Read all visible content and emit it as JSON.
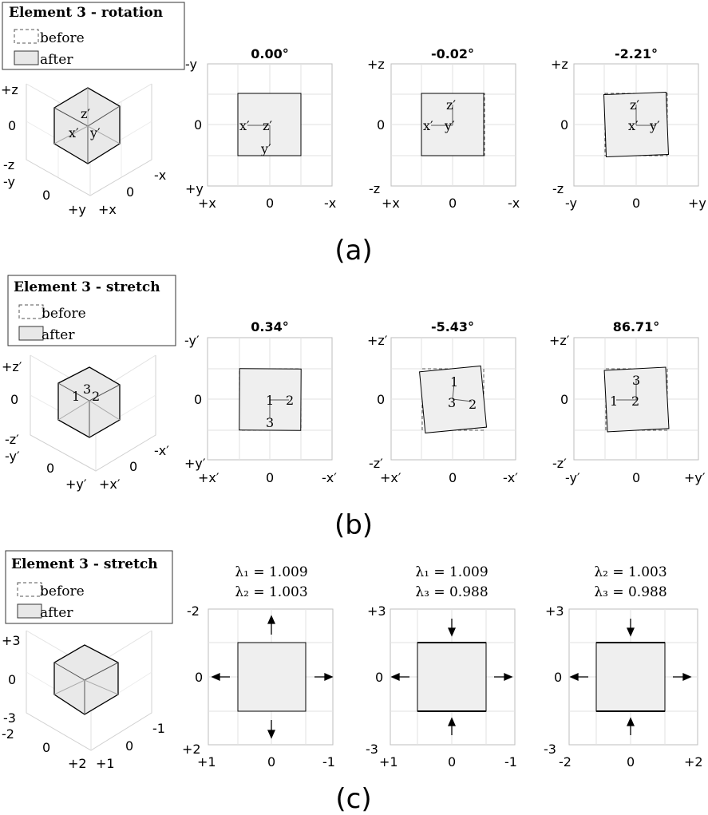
{
  "colors": {
    "after_fill": "#efefef",
    "grid": "#e1e1e1",
    "edge": "#000000"
  },
  "legend_labels": {
    "before": "before",
    "after": "after"
  },
  "rows": [
    {
      "caption": "(a)",
      "legend_title": "Element 3 - rotation",
      "cube": {
        "z_ticks": [
          "+z",
          "0",
          "-z"
        ],
        "left_ticks": [
          "-y",
          "0",
          "+y"
        ],
        "right_ticks": [
          "-x",
          "0",
          "+x"
        ],
        "labels": [
          "z′",
          "x′",
          "y′"
        ]
      },
      "panels": [
        {
          "title": "0.00°",
          "yticks": [
            "-y",
            "0",
            "+y"
          ],
          "xticks": [
            "+x",
            "0",
            "-x"
          ],
          "angle": 0.0,
          "labels": [
            "x′",
            "z′",
            "y′"
          ]
        },
        {
          "title": "-0.02°",
          "yticks": [
            "+z",
            "0",
            "-z"
          ],
          "xticks": [
            "+x",
            "0",
            "-x"
          ],
          "angle": -0.02,
          "labels": [
            "z′",
            "x′",
            "y′"
          ]
        },
        {
          "title": "-2.21°",
          "yticks": [
            "+z",
            "0",
            "-z"
          ],
          "xticks": [
            "-y",
            "0",
            "+y"
          ],
          "angle": -2.21,
          "labels": [
            "z′",
            "x′",
            "y′"
          ]
        }
      ]
    },
    {
      "caption": "(b)",
      "legend_title": "Element 3 - stretch",
      "cube": {
        "z_ticks": [
          "+z′",
          "0",
          "-z′"
        ],
        "left_ticks": [
          "-y′",
          "0",
          "+y′"
        ],
        "right_ticks": [
          "-x′",
          "0",
          "+x′"
        ],
        "labels": [
          "3",
          "1",
          "2"
        ]
      },
      "panels": [
        {
          "title": "0.34°",
          "yticks": [
            "-y′",
            "0",
            "+y′"
          ],
          "xticks": [
            "+x′",
            "0",
            "-x′"
          ],
          "angle": 0.34,
          "labels": [
            "1",
            "2",
            "3"
          ]
        },
        {
          "title": "-5.43°",
          "yticks": [
            "+z′",
            "0",
            "-z′"
          ],
          "xticks": [
            "+x′",
            "0",
            "-x′"
          ],
          "angle": -5.43,
          "labels": [
            "1",
            "3",
            "2"
          ]
        },
        {
          "title": "86.71°",
          "yticks": [
            "+z′",
            "0",
            "-z′"
          ],
          "xticks": [
            "-y′",
            "0",
            "+y′"
          ],
          "angle": 86.71,
          "labels": [
            "3",
            "1",
            "2"
          ]
        }
      ]
    },
    {
      "caption": "(c)",
      "legend_title": "Element 3 - stretch",
      "cube": {
        "z_ticks": [
          "+3",
          "0",
          "-3"
        ],
        "left_ticks": [
          "-2",
          "0",
          "+2"
        ],
        "right_ticks": [
          "-1",
          "0",
          "+1"
        ]
      },
      "panels": [
        {
          "title": [
            "λ₁ = 1.009",
            "λ₂ = 1.003"
          ],
          "yticks": [
            "-2",
            "0",
            "+2"
          ],
          "xticks": [
            "+1",
            "0",
            "-1"
          ]
        },
        {
          "title": [
            "λ₁ = 1.009",
            "λ₃ = 0.988"
          ],
          "yticks": [
            "+3",
            "0",
            "-3"
          ],
          "xticks": [
            "+1",
            "0",
            "-1"
          ]
        },
        {
          "title": [
            "λ₂ = 1.003",
            "λ₃ = 0.988"
          ],
          "yticks": [
            "+3",
            "0",
            "-3"
          ],
          "xticks": [
            "-2",
            "0",
            "+2"
          ]
        }
      ]
    }
  ]
}
